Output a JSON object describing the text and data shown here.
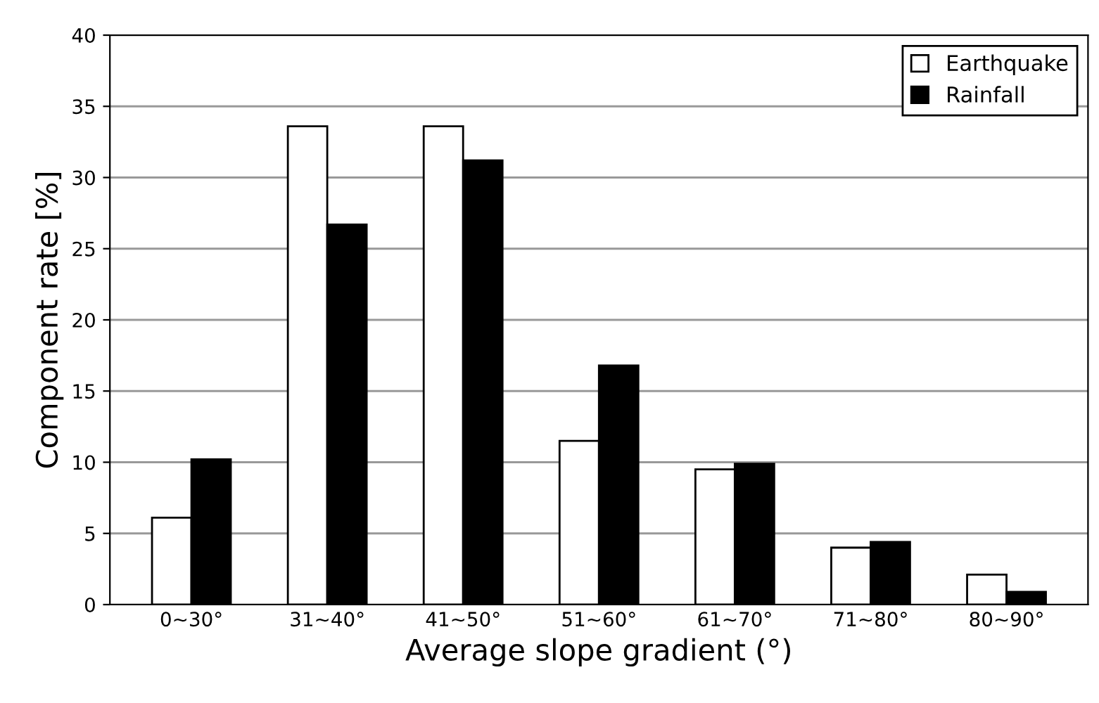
{
  "chart_data": {
    "type": "bar",
    "xlabel": "Average slope gradient (°)",
    "ylabel": "Component rate [%]",
    "categories": [
      "0~30°",
      "31~40°",
      "41~50°",
      "51~60°",
      "61~70°",
      "71~80°",
      "80~90°"
    ],
    "series": [
      {
        "name": "Earthquake",
        "color": "#ffffff",
        "values": [
          6.1,
          33.6,
          33.6,
          11.5,
          9.5,
          4.0,
          2.1
        ]
      },
      {
        "name": "Rainfall",
        "color": "#000000",
        "values": [
          10.2,
          26.7,
          31.2,
          16.8,
          9.9,
          4.4,
          0.9
        ]
      }
    ],
    "ylim": [
      0,
      40
    ],
    "yticks": [
      0,
      5,
      10,
      15,
      20,
      25,
      30,
      35,
      40
    ],
    "grid": "y",
    "legend": "top right"
  }
}
